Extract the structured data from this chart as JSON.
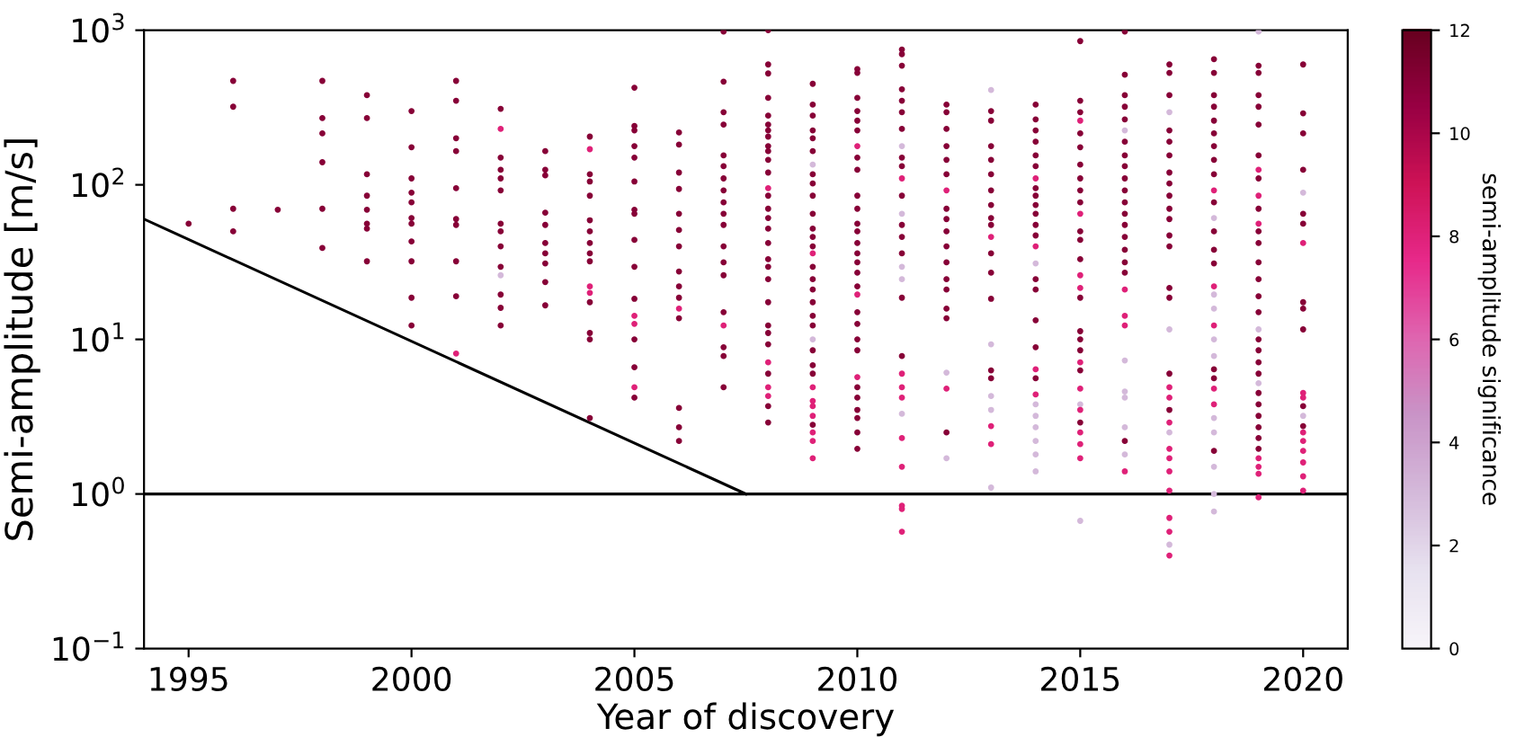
{
  "chart_data": {
    "type": "scatter",
    "xlabel": "Year of discovery",
    "ylabel": "Semi-amplitude [m/s]",
    "clabel": "semi-amplitude significance",
    "log": "y",
    "xlim": [
      1994,
      2021
    ],
    "xticks": [
      1995,
      2000,
      2005,
      2010,
      2015,
      2020
    ],
    "ylim": [
      0.1,
      1000
    ],
    "yticks": [
      {
        "value": 0.1,
        "label": "10$^{−1}$"
      },
      {
        "value": 1,
        "label": "10$^{0}$"
      },
      {
        "value": 10,
        "label": "10$^{1}$"
      },
      {
        "value": 100,
        "label": "10$^{2}$"
      },
      {
        "value": 1000,
        "label": "10$^{3}$"
      }
    ],
    "clim": [
      0,
      12
    ],
    "cticks": [
      0,
      2,
      4,
      6,
      8,
      10,
      12
    ],
    "grid": false,
    "marker": "circle",
    "ref_lines": [
      {
        "axis": "y",
        "value": 1,
        "color": "#000000"
      }
    ],
    "series": [
      {
        "type": "line",
        "color": "#000000",
        "marker": "none",
        "x": [
          1994,
          2007.5
        ],
        "values": [
          60,
          1
        ]
      },
      {
        "x": [
          1995
        ],
        "values": [
          56
        ],
        "colors": [
          "#870037"
        ]
      },
      {
        "x": [
          1996,
          1996,
          1996,
          1996
        ],
        "values": [
          470,
          320,
          70,
          50
        ],
        "colors": [
          "#870037",
          "#870037",
          "#870037",
          "#870037"
        ]
      },
      {
        "x": [
          1997
        ],
        "values": [
          69
        ],
        "colors": [
          "#870037"
        ]
      },
      {
        "x": [
          1998,
          1998,
          1998,
          1998,
          1998,
          1998
        ],
        "values": [
          470,
          270,
          215,
          140,
          70,
          39
        ],
        "colors": [
          "#870037",
          "#870037",
          "#870037",
          "#870037",
          "#870037",
          "#870037"
        ]
      },
      {
        "x": [
          1999,
          1999,
          1999,
          1999,
          1999,
          1999,
          1999,
          1999
        ],
        "values": [
          380,
          270,
          117,
          85,
          69,
          56,
          52,
          32
        ],
        "colors": [
          "#870037",
          "#870037",
          "#870037",
          "#870037",
          "#870037",
          "#870037",
          "#870037",
          "#870037"
        ]
      },
      {
        "x": [
          2000,
          2000,
          2000,
          2000,
          2000,
          2000,
          2000,
          2000,
          2000,
          2000,
          2000
        ],
        "values": [
          300,
          175,
          110,
          89,
          77,
          61,
          56,
          43,
          32,
          18.6,
          12.3
        ],
        "colors": [
          "#870037",
          "#870037",
          "#870037",
          "#870037",
          "#870037",
          "#870037",
          "#870037",
          "#870037",
          "#870037",
          "#870037",
          "#870037"
        ]
      },
      {
        "x": [
          2001,
          2001,
          2001,
          2001,
          2001,
          2001,
          2001,
          2001,
          2001,
          2001
        ],
        "values": [
          470,
          350,
          200,
          165,
          95,
          60,
          55,
          32,
          19,
          8.1
        ],
        "colors": [
          "#870037",
          "#870037",
          "#870037",
          "#870037",
          "#870037",
          "#870037",
          "#870037",
          "#870037",
          "#870037",
          "#df2178"
        ]
      },
      {
        "x": [
          2002,
          2002,
          2002,
          2002,
          2002,
          2002,
          2002,
          2002,
          2002,
          2002,
          2002,
          2002,
          2002,
          2002
        ],
        "values": [
          310,
          230,
          150,
          125,
          110,
          92,
          56,
          50,
          40,
          29.5,
          26,
          19.5,
          16,
          12.3
        ],
        "colors": [
          "#870037",
          "#df2178",
          "#870037",
          "#870037",
          "#870037",
          "#870037",
          "#870037",
          "#870037",
          "#870037",
          "#870037",
          "#d4b9da",
          "#870037",
          "#870037",
          "#870037"
        ]
      },
      {
        "x": [
          2003,
          2003,
          2003,
          2003,
          2003,
          2003,
          2003,
          2003,
          2003,
          2003
        ],
        "values": [
          165,
          125,
          115,
          66,
          55,
          42,
          36,
          31,
          23.5,
          16.6
        ],
        "colors": [
          "#870037",
          "#870037",
          "#870037",
          "#870037",
          "#870037",
          "#870037",
          "#870037",
          "#870037",
          "#870037",
          "#870037"
        ]
      },
      {
        "x": [
          2004,
          2004,
          2004,
          2004,
          2004,
          2004,
          2004,
          2004,
          2004,
          2004,
          2004,
          2004,
          2004,
          2004,
          2004,
          2004
        ],
        "values": [
          205,
          170,
          117,
          105,
          85,
          59,
          50,
          42,
          36,
          32,
          22,
          20,
          17.4,
          11,
          10,
          3.1
        ],
        "colors": [
          "#870037",
          "#df2178",
          "#870037",
          "#870037",
          "#870037",
          "#870037",
          "#870037",
          "#870037",
          "#870037",
          "#870037",
          "#df2178",
          "#df2178",
          "#870037",
          "#870037",
          "#870037",
          "#870037"
        ]
      },
      {
        "x": [
          2005,
          2005,
          2005,
          2005,
          2005,
          2005,
          2005,
          2005,
          2005,
          2005,
          2005,
          2005,
          2005,
          2005,
          2005,
          2005,
          2005
        ],
        "values": [
          425,
          240,
          225,
          178,
          150,
          105,
          69,
          65,
          44,
          29.5,
          18.3,
          14.2,
          12.6,
          10,
          6.6,
          4.9,
          4.2
        ],
        "colors": [
          "#870037",
          "#870037",
          "#870037",
          "#870037",
          "#870037",
          "#870037",
          "#870037",
          "#870037",
          "#870037",
          "#870037",
          "#870037",
          "#df2178",
          "#df2178",
          "#870037",
          "#870037",
          "#df2178",
          "#870037"
        ]
      },
      {
        "x": [
          2006,
          2006,
          2006,
          2006,
          2006,
          2006,
          2006,
          2006,
          2006,
          2006,
          2006,
          2006,
          2006,
          2006,
          2006
        ],
        "values": [
          218,
          182,
          120,
          94,
          65,
          51,
          40,
          27.5,
          22,
          18.6,
          15.8,
          13.7,
          3.6,
          2.7,
          2.2
        ],
        "colors": [
          "#870037",
          "#870037",
          "#870037",
          "#870037",
          "#870037",
          "#870037",
          "#870037",
          "#870037",
          "#870037",
          "#870037",
          "#df2178",
          "#870037",
          "#870037",
          "#870037",
          "#870037"
        ]
      },
      {
        "x": [
          2007,
          2007,
          2007,
          2007,
          2007,
          2007,
          2007,
          2007,
          2007,
          2007,
          2007,
          2007,
          2007,
          2007,
          2007,
          2007,
          2007,
          2007,
          2007
        ],
        "values": [
          980,
          465,
          295,
          245,
          155,
          132,
          110,
          92,
          77,
          65,
          55,
          40,
          31.5,
          26,
          15,
          12.3,
          8.9,
          7.8,
          4.9
        ],
        "colors": [
          "#870037",
          "#870037",
          "#870037",
          "#870037",
          "#870037",
          "#870037",
          "#870037",
          "#870037",
          "#870037",
          "#870037",
          "#870037",
          "#870037",
          "#870037",
          "#870037",
          "#870037",
          "#df2178",
          "#870037",
          "#870037",
          "#870037"
        ]
      },
      {
        "x": [
          2008,
          2008,
          2008,
          2008,
          2008,
          2008,
          2008,
          2008,
          2008,
          2008,
          2008,
          2008,
          2008,
          2008,
          2008,
          2008,
          2008,
          2008,
          2008,
          2008,
          2008,
          2008,
          2008,
          2008,
          2008,
          2008,
          2008,
          2008,
          2008,
          2008,
          2008
        ],
        "values": [
          1000,
          600,
          525,
          365,
          280,
          245,
          225,
          205,
          178,
          165,
          145,
          120,
          95,
          85,
          70,
          61,
          52,
          42,
          33,
          29.5,
          24.5,
          17.4,
          12.3,
          11,
          9.3,
          7.1,
          6,
          4.9,
          4.3,
          3.7,
          2.9
        ],
        "colors": [
          "#870037",
          "#870037",
          "#870037",
          "#870037",
          "#870037",
          "#870037",
          "#870037",
          "#870037",
          "#870037",
          "#870037",
          "#870037",
          "#870037",
          "#df2178",
          "#870037",
          "#870037",
          "#870037",
          "#870037",
          "#870037",
          "#870037",
          "#870037",
          "#870037",
          "#870037",
          "#870037",
          "#870037",
          "#870037",
          "#df2178",
          "#870037",
          "#df2178",
          "#df2178",
          "#870037",
          "#870037"
        ]
      },
      {
        "x": [
          2009,
          2009,
          2009,
          2009,
          2009,
          2009,
          2009,
          2009,
          2009,
          2009,
          2009,
          2009,
          2009,
          2009,
          2009,
          2009,
          2009,
          2009,
          2009,
          2009,
          2009,
          2009,
          2009,
          2009,
          2009,
          2009,
          2009,
          2009,
          2009,
          2009,
          2009,
          2009,
          2009
        ],
        "values": [
          450,
          330,
          280,
          225,
          200,
          165,
          135,
          117,
          102,
          85,
          65,
          52,
          46,
          40,
          36,
          29.5,
          24.5,
          21,
          17.4,
          14.2,
          12.3,
          10,
          8.5,
          6.8,
          6,
          4.9,
          4,
          3.7,
          3.2,
          2.8,
          2.5,
          2.2,
          1.7
        ],
        "colors": [
          "#870037",
          "#870037",
          "#870037",
          "#870037",
          "#870037",
          "#870037",
          "#d4b9da",
          "#870037",
          "#870037",
          "#870037",
          "#870037",
          "#870037",
          "#870037",
          "#870037",
          "#df2178",
          "#870037",
          "#870037",
          "#870037",
          "#870037",
          "#870037",
          "#870037",
          "#d4b9da",
          "#870037",
          "#870037",
          "#870037",
          "#df2178",
          "#df2178",
          "#df2178",
          "#df2178",
          "#870037",
          "#df2178",
          "#df2178",
          "#df2178"
        ]
      },
      {
        "x": [
          2010,
          2010,
          2010,
          2010,
          2010,
          2010,
          2010,
          2010,
          2010,
          2010,
          2010,
          2010,
          2010,
          2010,
          2010,
          2010,
          2010,
          2010,
          2010,
          2010,
          2010,
          2010,
          2010,
          2010,
          2010,
          2010,
          2010,
          2010,
          2010,
          2010
        ],
        "values": [
          560,
          530,
          365,
          300,
          260,
          225,
          178,
          150,
          125,
          85,
          70,
          56,
          50,
          42,
          36,
          31.5,
          27,
          22,
          19.5,
          15,
          12.6,
          10,
          8.5,
          5.7,
          4.9,
          4.2,
          3.5,
          3.1,
          2.5,
          1.96
        ],
        "colors": [
          "#870037",
          "#870037",
          "#870037",
          "#870037",
          "#870037",
          "#870037",
          "#df2178",
          "#870037",
          "#870037",
          "#870037",
          "#870037",
          "#870037",
          "#870037",
          "#870037",
          "#870037",
          "#870037",
          "#870037",
          "#870037",
          "#df2178",
          "#870037",
          "#870037",
          "#870037",
          "#870037",
          "#df2178",
          "#870037",
          "#870037",
          "#870037",
          "#870037",
          "#870037",
          "#870037"
        ]
      },
      {
        "x": [
          2011,
          2011,
          2011,
          2011,
          2011,
          2011,
          2011,
          2011,
          2011,
          2011,
          2011,
          2011,
          2011,
          2011,
          2011,
          2011,
          2011,
          2011,
          2011,
          2011,
          2011,
          2011,
          2011,
          2011,
          2011,
          2011,
          2011,
          2011,
          2011
        ],
        "values": [
          750,
          700,
          590,
          415,
          350,
          295,
          230,
          178,
          150,
          132,
          110,
          85,
          65,
          55,
          46,
          36,
          29.5,
          24.5,
          18.6,
          7.8,
          6,
          4.9,
          4.2,
          3.3,
          2.3,
          1.5,
          0.84,
          0.8,
          0.57
        ],
        "colors": [
          "#870037",
          "#870037",
          "#870037",
          "#870037",
          "#870037",
          "#870037",
          "#870037",
          "#d4b9da",
          "#870037",
          "#870037",
          "#df2178",
          "#870037",
          "#d4b9da",
          "#870037",
          "#870037",
          "#870037",
          "#d4b9da",
          "#d4b9da",
          "#870037",
          "#870037",
          "#df2178",
          "#df2178",
          "#df2178",
          "#d4b9da",
          "#df2178",
          "#df2178",
          "#df2178",
          "#df2178",
          "#df2178"
        ]
      },
      {
        "x": [
          2012,
          2012,
          2012,
          2012,
          2012,
          2012,
          2012,
          2012,
          2012,
          2012,
          2012,
          2012,
          2012,
          2012,
          2012,
          2012,
          2012,
          2012,
          2012,
          2012
        ],
        "values": [
          330,
          295,
          230,
          178,
          145,
          117,
          92,
          70,
          60,
          50,
          40,
          31.5,
          24.5,
          21,
          15.8,
          13.7,
          6.1,
          4.8,
          2.5,
          1.7
        ],
        "colors": [
          "#870037",
          "#870037",
          "#870037",
          "#870037",
          "#870037",
          "#870037",
          "#df2178",
          "#870037",
          "#870037",
          "#870037",
          "#870037",
          "#870037",
          "#870037",
          "#870037",
          "#870037",
          "#870037",
          "#d4b9da",
          "#df2178",
          "#870037",
          "#d4b9da"
        ]
      },
      {
        "x": [
          2013,
          2013,
          2013,
          2013,
          2013,
          2013,
          2013,
          2013,
          2013,
          2013,
          2013,
          2013,
          2013,
          2013,
          2013,
          2013,
          2013,
          2013,
          2013,
          2013,
          2013,
          2013
        ],
        "values": [
          410,
          300,
          260,
          178,
          145,
          117,
          92,
          74,
          61,
          55,
          46,
          36,
          27,
          18.3,
          9.3,
          6.3,
          5.6,
          4.3,
          3.5,
          2.75,
          2.1,
          1.1
        ],
        "colors": [
          "#d4b9da",
          "#870037",
          "#870037",
          "#870037",
          "#870037",
          "#870037",
          "#870037",
          "#870037",
          "#870037",
          "#870037",
          "#df2178",
          "#870037",
          "#870037",
          "#870037",
          "#d4b9da",
          "#870037",
          "#870037",
          "#d4b9da",
          "#d4b9da",
          "#df2178",
          "#df2178",
          "#d4b9da"
        ]
      },
      {
        "x": [
          2014,
          2014,
          2014,
          2014,
          2014,
          2014,
          2014,
          2014,
          2014,
          2014,
          2014,
          2014,
          2014,
          2014,
          2014,
          2014,
          2014,
          2014,
          2014,
          2014,
          2014,
          2014,
          2014,
          2014,
          2014,
          2014,
          2014,
          2014
        ],
        "values": [
          330,
          265,
          225,
          190,
          155,
          132,
          110,
          95,
          85,
          74,
          65,
          55,
          47,
          40,
          31,
          24.5,
          21,
          13.3,
          8.9,
          6.4,
          5.6,
          4.4,
          3.8,
          3.2,
          2.7,
          2.2,
          1.8,
          1.4
        ],
        "colors": [
          "#870037",
          "#870037",
          "#870037",
          "#870037",
          "#870037",
          "#870037",
          "#df2178",
          "#870037",
          "#870037",
          "#870037",
          "#870037",
          "#870037",
          "#870037",
          "#df2178",
          "#d4b9da",
          "#870037",
          "#870037",
          "#870037",
          "#870037",
          "#df2178",
          "#870037",
          "#df2178",
          "#d4b9da",
          "#d4b9da",
          "#d4b9da",
          "#d4b9da",
          "#d4b9da",
          "#d4b9da"
        ]
      },
      {
        "x": [
          2015,
          2015,
          2015,
          2015,
          2015,
          2015,
          2015,
          2015,
          2015,
          2015,
          2015,
          2015,
          2015,
          2015,
          2015,
          2015,
          2015,
          2015,
          2015,
          2015,
          2015,
          2015,
          2015,
          2015,
          2015,
          2015,
          2015,
          2015,
          2015,
          2015
        ],
        "values": [
          850,
          350,
          295,
          260,
          215,
          175,
          135,
          110,
          92,
          77,
          65,
          50,
          44,
          33,
          26,
          21.5,
          18.6,
          11.3,
          10,
          8.5,
          7.1,
          6.3,
          4.8,
          3.8,
          3.5,
          2.9,
          2.5,
          2.1,
          1.7,
          0.67
        ],
        "colors": [
          "#870037",
          "#870037",
          "#870037",
          "#df2178",
          "#870037",
          "#870037",
          "#870037",
          "#870037",
          "#870037",
          "#870037",
          "#df2178",
          "#870037",
          "#870037",
          "#870037",
          "#df2178",
          "#df2178",
          "#870037",
          "#870037",
          "#870037",
          "#870037",
          "#df2178",
          "#870037",
          "#df2178",
          "#d4b9da",
          "#df2178",
          "#870037",
          "#df2178",
          "#df2178",
          "#df2178",
          "#d4b9da"
        ]
      },
      {
        "x": [
          2016,
          2016,
          2016,
          2016,
          2016,
          2016,
          2016,
          2016,
          2016,
          2016,
          2016,
          2016,
          2016,
          2016,
          2016,
          2016,
          2016,
          2016,
          2016,
          2016,
          2016,
          2016,
          2016,
          2016,
          2016,
          2016,
          2016,
          2016
        ],
        "values": [
          980,
          515,
          380,
          320,
          265,
          225,
          190,
          155,
          132,
          110,
          92,
          77,
          65,
          55,
          46,
          38,
          31.5,
          27,
          21,
          14.2,
          12.3,
          7.3,
          4.6,
          4.2,
          2.7,
          2.2,
          1.8,
          1.4
        ],
        "colors": [
          "#870037",
          "#870037",
          "#870037",
          "#870037",
          "#870037",
          "#d4b9da",
          "#870037",
          "#870037",
          "#870037",
          "#870037",
          "#870037",
          "#870037",
          "#870037",
          "#870037",
          "#870037",
          "#870037",
          "#870037",
          "#870037",
          "#df2178",
          "#df2178",
          "#df2178",
          "#d4b9da",
          "#d4b9da",
          "#d4b9da",
          "#d4b9da",
          "#870037",
          "#d4b9da",
          "#df2178"
        ]
      },
      {
        "x": [
          2017,
          2017,
          2017,
          2017,
          2017,
          2017,
          2017,
          2017,
          2017,
          2017,
          2017,
          2017,
          2017,
          2017,
          2017,
          2017,
          2017,
          2017,
          2017,
          2017,
          2017,
          2017,
          2017,
          2017,
          2017,
          2017,
          2017,
          2017,
          2017,
          2017,
          2017
        ],
        "values": [
          600,
          530,
          380,
          295,
          225,
          190,
          155,
          120,
          102,
          85,
          70,
          60,
          47,
          40,
          21.5,
          18.6,
          11.6,
          6,
          4.9,
          4.2,
          3.5,
          2.9,
          2.5,
          1.96,
          1.7,
          1.4,
          1.05,
          0.7,
          0.57,
          0.47,
          0.4
        ],
        "colors": [
          "#870037",
          "#870037",
          "#870037",
          "#d4b9da",
          "#870037",
          "#870037",
          "#870037",
          "#870037",
          "#870037",
          "#870037",
          "#870037",
          "#870037",
          "#870037",
          "#870037",
          "#870037",
          "#870037",
          "#d4b9da",
          "#870037",
          "#df2178",
          "#df2178",
          "#870037",
          "#df2178",
          "#d4b9da",
          "#df2178",
          "#df2178",
          "#df2178",
          "#df2178",
          "#df2178",
          "#df2178",
          "#d4b9da",
          "#df2178"
        ]
      },
      {
        "x": [
          2018,
          2018,
          2018,
          2018,
          2018,
          2018,
          2018,
          2018,
          2018,
          2018,
          2018,
          2018,
          2018,
          2018,
          2018,
          2018,
          2018,
          2018,
          2018,
          2018,
          2018,
          2018,
          2018,
          2018,
          2018,
          2018,
          2018,
          2018,
          2018,
          2018,
          2018
        ],
        "values": [
          650,
          530,
          380,
          320,
          260,
          215,
          178,
          145,
          117,
          92,
          77,
          61,
          50,
          38,
          31,
          22,
          19.5,
          15.8,
          12.3,
          10,
          7.8,
          6.4,
          5.6,
          4.8,
          3.8,
          3.1,
          2.5,
          1.9,
          1.5,
          1.0,
          0.77
        ],
        "colors": [
          "#870037",
          "#870037",
          "#870037",
          "#870037",
          "#870037",
          "#870037",
          "#870037",
          "#870037",
          "#870037",
          "#df2178",
          "#870037",
          "#d4b9da",
          "#870037",
          "#870037",
          "#870037",
          "#df2178",
          "#d4b9da",
          "#d4b9da",
          "#df2178",
          "#d4b9da",
          "#d4b9da",
          "#870037",
          "#870037",
          "#df2178",
          "#df2178",
          "#d4b9da",
          "#d4b9da",
          "#870037",
          "#d4b9da",
          "#d4b9da",
          "#d4b9da"
        ]
      },
      {
        "x": [
          2019,
          2019,
          2019,
          2019,
          2019,
          2019,
          2019,
          2019,
          2019,
          2019,
          2019,
          2019,
          2019,
          2019,
          2019,
          2019,
          2019,
          2019,
          2019,
          2019,
          2019,
          2019,
          2019,
          2019,
          2019,
          2019,
          2019,
          2019,
          2019,
          2019,
          2019,
          2019,
          2019,
          2019
        ],
        "values": [
          980,
          590,
          530,
          380,
          320,
          245,
          155,
          125,
          110,
          85,
          70,
          56,
          50,
          42,
          31.5,
          24.5,
          19,
          15,
          11.6,
          10,
          8.5,
          7.1,
          6,
          5.2,
          4.5,
          3.8,
          3.2,
          2.7,
          2.3,
          1.96,
          1.7,
          1.5,
          1.35,
          0.95
        ],
        "colors": [
          "#d4b9da",
          "#870037",
          "#870037",
          "#870037",
          "#870037",
          "#870037",
          "#870037",
          "#df2178",
          "#870037",
          "#df2178",
          "#870037",
          "#df2178",
          "#870037",
          "#870037",
          "#870037",
          "#870037",
          "#870037",
          "#870037",
          "#d4b9da",
          "#870037",
          "#870037",
          "#870037",
          "#870037",
          "#d4b9da",
          "#870037",
          "#870037",
          "#870037",
          "#870037",
          "#870037",
          "#870037",
          "#df2178",
          "#df2178",
          "#df2178",
          "#df2178"
        ]
      },
      {
        "x": [
          2020,
          2020,
          2020,
          2020,
          2020,
          2020,
          2020,
          2020,
          2020,
          2020,
          2020,
          2020,
          2020,
          2020,
          2020,
          2020,
          2020,
          2020,
          2020,
          2020,
          2020,
          2020
        ],
        "values": [
          600,
          290,
          215,
          125,
          89,
          65,
          56,
          42,
          17.4,
          15.8,
          11.6,
          4.5,
          4.2,
          3.7,
          3.2,
          2.75,
          2.5,
          2.2,
          1.9,
          1.6,
          1.3,
          1.05
        ],
        "colors": [
          "#870037",
          "#870037",
          "#870037",
          "#870037",
          "#d4b9da",
          "#870037",
          "#870037",
          "#df2178",
          "#870037",
          "#870037",
          "#870037",
          "#df2178",
          "#df2178",
          "#870037",
          "#d4b9da",
          "#870037",
          "#df2178",
          "#df2178",
          "#df2178",
          "#df2178",
          "#df2178",
          "#df2178"
        ]
      }
    ]
  }
}
